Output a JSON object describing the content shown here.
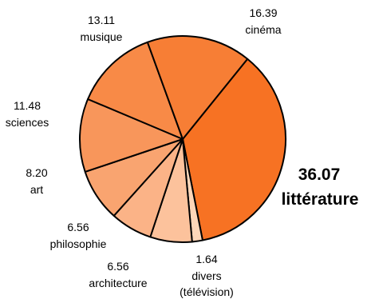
{
  "chart_data": {
    "type": "pie",
    "start_angle_deg": 51,
    "direction": "clockwise",
    "slices": [
      {
        "category": "littérature",
        "value": 36.07,
        "value_label": "36.07",
        "color": "#f77223"
      },
      {
        "category": "divers",
        "category_line2": "(télévision)",
        "value": 1.64,
        "value_label": "1.64",
        "color": "#fdd6b8"
      },
      {
        "category": "architecture",
        "value": 6.56,
        "value_label": "6.56",
        "color": "#fcc29c"
      },
      {
        "category": "philosophie",
        "value": 6.56,
        "value_label": "6.56",
        "color": "#fbb387"
      },
      {
        "category": "art",
        "value": 8.2,
        "value_label": "8.20",
        "color": "#f9a470"
      },
      {
        "category": "sciences",
        "value": 11.48,
        "value_label": "11.48",
        "color": "#f8965b"
      },
      {
        "category": "musique",
        "value": 13.11,
        "value_label": "13.11",
        "color": "#f88a47"
      },
      {
        "category": "cinéma",
        "value": 16.39,
        "value_label": "16.39",
        "color": "#f77e35"
      }
    ]
  }
}
